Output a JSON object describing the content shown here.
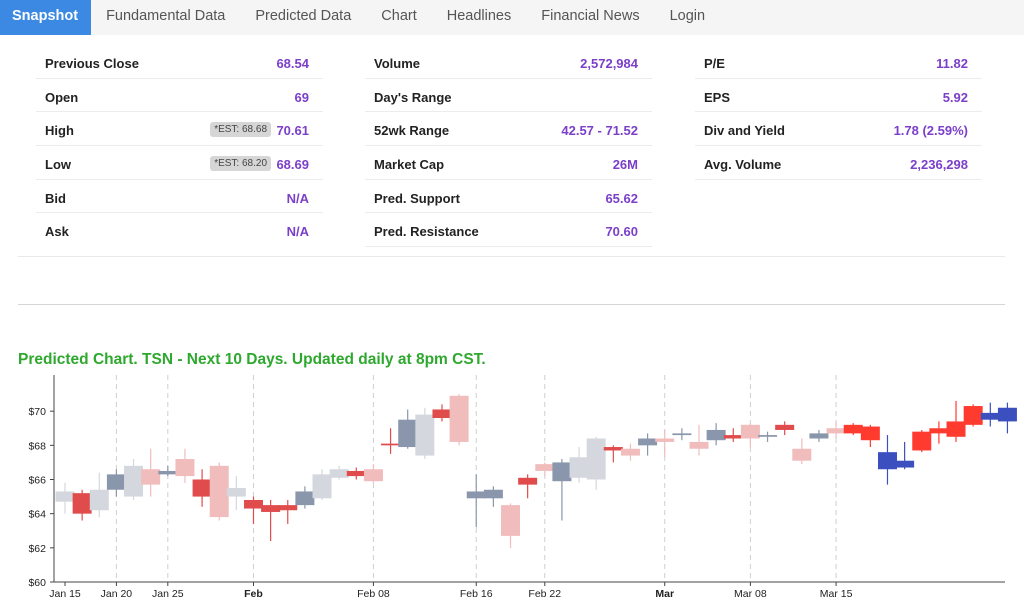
{
  "tabs": [
    {
      "label": "Snapshot",
      "active": true
    },
    {
      "label": "Fundamental Data"
    },
    {
      "label": "Predicted Data"
    },
    {
      "label": "Chart"
    },
    {
      "label": "Headlines"
    },
    {
      "label": "Financial News"
    },
    {
      "label": "Login"
    }
  ],
  "stats": {
    "col1": [
      {
        "label": "Previous Close",
        "value": "68.54"
      },
      {
        "label": "Open",
        "value": "69"
      },
      {
        "label": "High",
        "value": "70.61",
        "est": "*EST: 68.68"
      },
      {
        "label": "Low",
        "value": "68.69",
        "est": "*EST: 68.20"
      },
      {
        "label": "Bid",
        "value": "N/A"
      },
      {
        "label": "Ask",
        "value": "N/A"
      }
    ],
    "col2": [
      {
        "label": "Volume",
        "value": "2,572,984"
      },
      {
        "label": "Day's Range",
        "value": ""
      },
      {
        "label": "52wk Range",
        "value": "42.57 - 71.52"
      },
      {
        "label": "Market Cap",
        "value": "26M"
      },
      {
        "label": "Pred. Support",
        "value": "65.62"
      },
      {
        "label": "Pred. Resistance",
        "value": "70.60"
      }
    ],
    "col3": [
      {
        "label": "P/E",
        "value": "11.82"
      },
      {
        "label": "EPS",
        "value": "5.92"
      },
      {
        "label": "Div and Yield",
        "value": "1.78 (2.59%)"
      },
      {
        "label": "Avg. Volume",
        "value": "2,236,298"
      }
    ]
  },
  "chart": {
    "title": "Predicted Chart. TSN - Next 10 Days. Updated daily at 8pm CST."
  },
  "chart_data": {
    "type": "candlestick",
    "ylim": [
      60,
      72
    ],
    "yticks": [
      "$60",
      "$62",
      "$64",
      "$66",
      "$68",
      "$70"
    ],
    "xticks": [
      {
        "label": "Jan 15",
        "i": 0
      },
      {
        "label": "Jan 20",
        "i": 3
      },
      {
        "label": "Jan 25",
        "i": 6
      },
      {
        "label": "Feb",
        "i": 11,
        "bold": true
      },
      {
        "label": "Feb 08",
        "i": 18
      },
      {
        "label": "Feb 16",
        "i": 24
      },
      {
        "label": "Feb 22",
        "i": 28
      },
      {
        "label": "Mar",
        "i": 35,
        "bold": true
      },
      {
        "label": "Mar 08",
        "i": 40
      },
      {
        "label": "Mar 15",
        "i": 45
      }
    ],
    "vlines": [
      3,
      6,
      11,
      18,
      24,
      28,
      35,
      40,
      45
    ],
    "colors": {
      "hist_up": "#8a96ab",
      "hist_up_light": "#d4d7de",
      "hist_down": "#e04b4b",
      "hist_down_light": "#f1bcbc",
      "pred_up": "#3c4fbf",
      "pred_down": "#ff3b30"
    },
    "candles": [
      {
        "o": 64.7,
        "c": 65.3,
        "h": 65.8,
        "l": 64.0,
        "s": "hist_up_light"
      },
      {
        "o": 65.2,
        "c": 64.0,
        "h": 65.4,
        "l": 63.6,
        "s": "hist_down"
      },
      {
        "o": 64.2,
        "c": 65.4,
        "h": 66.4,
        "l": 63.8,
        "s": "hist_up_light"
      },
      {
        "o": 65.4,
        "c": 66.3,
        "h": 66.6,
        "l": 65.0,
        "s": "hist_up"
      },
      {
        "o": 65.0,
        "c": 66.8,
        "h": 67.2,
        "l": 64.8,
        "s": "hist_up_light"
      },
      {
        "o": 66.6,
        "c": 65.7,
        "h": 67.8,
        "l": 65.0,
        "s": "hist_down_light"
      },
      {
        "o": 66.3,
        "c": 66.5,
        "h": 66.8,
        "l": 66.2,
        "s": "hist_up"
      },
      {
        "o": 67.2,
        "c": 66.2,
        "h": 67.8,
        "l": 65.8,
        "s": "hist_down_light"
      },
      {
        "o": 66.0,
        "c": 65.0,
        "h": 66.6,
        "l": 64.4,
        "s": "hist_down"
      },
      {
        "o": 66.8,
        "c": 63.8,
        "h": 67.0,
        "l": 63.6,
        "s": "hist_down_light"
      },
      {
        "o": 65.0,
        "c": 65.5,
        "h": 66.2,
        "l": 64.2,
        "s": "hist_up_light"
      },
      {
        "o": 64.8,
        "c": 64.3,
        "h": 65.0,
        "l": 63.4,
        "s": "hist_down"
      },
      {
        "o": 64.5,
        "c": 64.1,
        "h": 64.8,
        "l": 62.4,
        "s": "hist_down"
      },
      {
        "o": 64.5,
        "c": 64.2,
        "h": 64.8,
        "l": 63.4,
        "s": "hist_down"
      },
      {
        "o": 64.5,
        "c": 65.3,
        "h": 65.6,
        "l": 64.3,
        "s": "hist_up"
      },
      {
        "o": 64.9,
        "c": 66.3,
        "h": 66.6,
        "l": 64.8,
        "s": "hist_up_light"
      },
      {
        "o": 66.1,
        "c": 66.6,
        "h": 66.8,
        "l": 66.0,
        "s": "hist_up_light"
      },
      {
        "o": 66.5,
        "c": 66.2,
        "h": 66.7,
        "l": 66.0,
        "s": "hist_down"
      },
      {
        "o": 66.6,
        "c": 65.9,
        "h": 66.9,
        "l": 65.8,
        "s": "hist_down_light"
      },
      {
        "o": 68.1,
        "c": 68.0,
        "h": 69.0,
        "l": 67.5,
        "s": "hist_down"
      },
      {
        "o": 67.9,
        "c": 69.5,
        "h": 70.1,
        "l": 67.8,
        "s": "hist_up"
      },
      {
        "o": 67.4,
        "c": 69.8,
        "h": 70.2,
        "l": 67.2,
        "s": "hist_up_light"
      },
      {
        "o": 70.1,
        "c": 69.6,
        "h": 70.4,
        "l": 69.4,
        "s": "hist_down"
      },
      {
        "o": 70.9,
        "c": 68.2,
        "h": 71.0,
        "l": 68.0,
        "s": "hist_down_light"
      },
      {
        "o": 64.9,
        "c": 65.3,
        "h": 66.3,
        "l": 63.2,
        "s": "hist_up"
      },
      {
        "o": 64.9,
        "c": 65.4,
        "h": 65.6,
        "l": 64.4,
        "s": "hist_up"
      },
      {
        "o": 64.5,
        "c": 62.7,
        "h": 64.6,
        "l": 62.0,
        "s": "hist_down_light"
      },
      {
        "o": 65.7,
        "c": 66.1,
        "h": 66.3,
        "l": 64.9,
        "s": "hist_down"
      },
      {
        "o": 66.5,
        "c": 66.9,
        "h": 67.0,
        "l": 66.2,
        "s": "hist_down_light"
      },
      {
        "o": 65.9,
        "c": 67.0,
        "h": 67.2,
        "l": 63.6,
        "s": "hist_up"
      },
      {
        "o": 66.1,
        "c": 67.3,
        "h": 67.9,
        "l": 65.8,
        "s": "hist_up_light"
      },
      {
        "o": 66.0,
        "c": 68.4,
        "h": 68.5,
        "l": 65.4,
        "s": "hist_up_light"
      },
      {
        "o": 67.7,
        "c": 67.9,
        "h": 68.0,
        "l": 67.0,
        "s": "hist_down"
      },
      {
        "o": 67.4,
        "c": 67.8,
        "h": 68.1,
        "l": 67.1,
        "s": "hist_down_light"
      },
      {
        "o": 68.0,
        "c": 68.4,
        "h": 68.7,
        "l": 67.4,
        "s": "hist_up"
      },
      {
        "o": 68.4,
        "c": 68.2,
        "h": 68.9,
        "l": 67.3,
        "s": "hist_down_light"
      },
      {
        "o": 68.6,
        "c": 68.7,
        "h": 69.0,
        "l": 68.3,
        "s": "hist_up"
      },
      {
        "o": 68.2,
        "c": 67.8,
        "h": 69.2,
        "l": 67.4,
        "s": "hist_down_light"
      },
      {
        "o": 68.3,
        "c": 68.9,
        "h": 69.3,
        "l": 68.0,
        "s": "hist_up"
      },
      {
        "o": 68.4,
        "c": 68.6,
        "h": 69.0,
        "l": 68.2,
        "s": "hist_down"
      },
      {
        "o": 69.2,
        "c": 68.4,
        "h": 69.3,
        "l": 67.9,
        "s": "hist_down_light"
      },
      {
        "o": 68.5,
        "c": 68.6,
        "h": 68.8,
        "l": 68.2,
        "s": "hist_up"
      },
      {
        "o": 68.9,
        "c": 69.2,
        "h": 69.4,
        "l": 68.6,
        "s": "hist_down"
      },
      {
        "o": 67.8,
        "c": 67.1,
        "h": 68.4,
        "l": 66.9,
        "s": "hist_down_light"
      },
      {
        "o": 68.4,
        "c": 68.7,
        "h": 68.9,
        "l": 68.2,
        "s": "hist_up"
      },
      {
        "o": 68.7,
        "c": 69.0,
        "h": 69.4,
        "l": 68.4,
        "s": "hist_down_light"
      },
      {
        "o": 69.2,
        "c": 68.7,
        "h": 69.3,
        "l": 68.6,
        "s": "pred_down"
      },
      {
        "o": 69.1,
        "c": 68.3,
        "h": 69.2,
        "l": 67.9,
        "s": "pred_down"
      },
      {
        "o": 67.6,
        "c": 66.6,
        "h": 68.6,
        "l": 65.7,
        "s": "pred_up"
      },
      {
        "o": 67.1,
        "c": 66.7,
        "h": 68.2,
        "l": 66.6,
        "s": "pred_up"
      },
      {
        "o": 67.7,
        "c": 68.8,
        "h": 68.9,
        "l": 67.6,
        "s": "pred_down"
      },
      {
        "o": 68.7,
        "c": 69.0,
        "h": 69.4,
        "l": 68.1,
        "s": "pred_down"
      },
      {
        "o": 68.5,
        "c": 69.4,
        "h": 70.6,
        "l": 68.2,
        "s": "pred_down"
      },
      {
        "o": 69.2,
        "c": 70.3,
        "h": 70.4,
        "l": 69.1,
        "s": "pred_down"
      },
      {
        "o": 69.5,
        "c": 69.9,
        "h": 70.5,
        "l": 69.1,
        "s": "pred_up"
      },
      {
        "o": 69.4,
        "c": 70.2,
        "h": 70.5,
        "l": 68.7,
        "s": "pred_up"
      }
    ]
  }
}
